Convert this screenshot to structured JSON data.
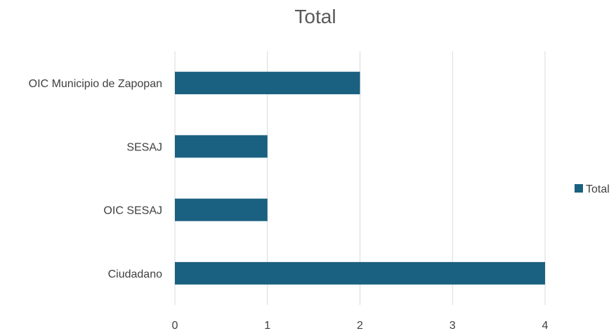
{
  "chart_data": {
    "type": "bar",
    "orientation": "horizontal",
    "title": "Total",
    "categories": [
      "OIC Municipio de Zapopan",
      "SESAJ",
      "OIC SESAJ",
      "Ciudadano"
    ],
    "series": [
      {
        "name": "Total",
        "values": [
          2,
          1,
          1,
          4
        ],
        "color": "#1a6080"
      }
    ],
    "xlim": [
      0,
      4
    ],
    "x_ticks": [
      0,
      1,
      2,
      3,
      4
    ],
    "grid": "vertical",
    "legend_position": "right"
  },
  "colors": {
    "bar": "#1a6080",
    "grid": "#d9d9d9",
    "axis_text": "#404040",
    "title": "#595959"
  }
}
